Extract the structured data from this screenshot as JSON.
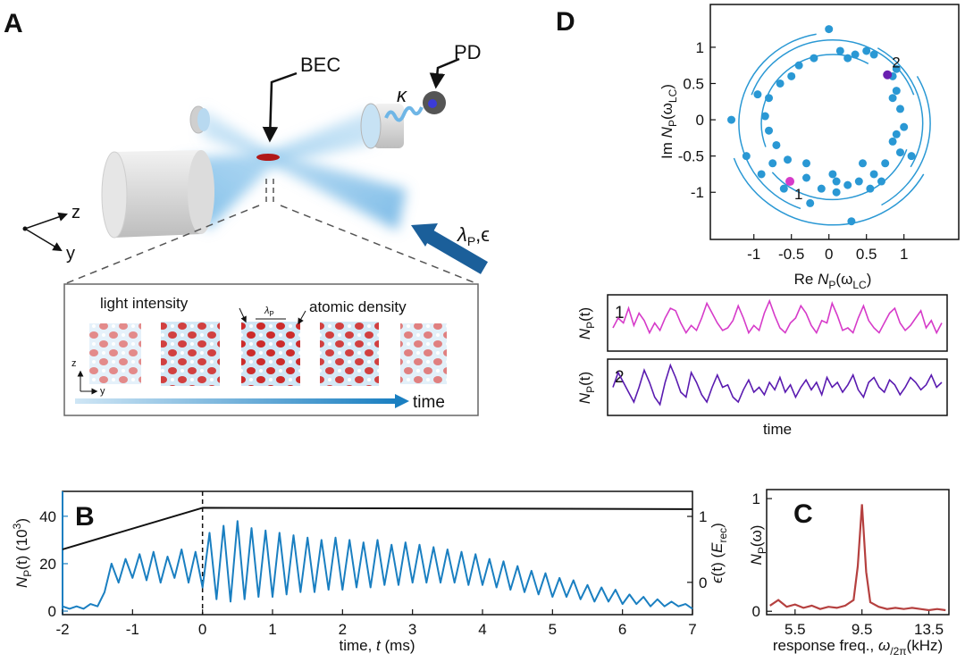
{
  "panel_a": {
    "letter": "A",
    "bec": "BEC",
    "pd": "PD",
    "kappa": "κ",
    "axis_z": "z",
    "axis_y": "y",
    "pump": {
      "symbol": "λ",
      "sub": "P",
      "post": ",ϵ"
    },
    "inset": {
      "light_intensity": "light intensity",
      "lattice": {
        "symbol": "λ",
        "sub": "P"
      },
      "atomic_density": "atomic density",
      "axis_z": "z",
      "axis_y": "y",
      "time": "time"
    }
  },
  "chart_data": [
    {
      "panel": "B",
      "type": "line",
      "xlabel": {
        "pre": "time, ",
        "symbol": "t",
        "post": " (ms)"
      },
      "ylabel": {
        "symbol": "N",
        "sub": "P",
        "mid": "(t) (10",
        "sup": "3",
        "post": ")"
      },
      "y2label": {
        "symbol": "ϵ",
        "mid": "(t) (",
        "symbol2": "E",
        "sub": "rec",
        "post": ")"
      },
      "xlim": [
        -2,
        7
      ],
      "xticks": [
        -2,
        -1,
        0,
        1,
        2,
        3,
        4,
        5,
        6,
        7
      ],
      "ylim": [
        -1.5,
        50.5
      ],
      "yticks": [
        0,
        20,
        40
      ],
      "y2lim": [
        -0.49,
        1.38
      ],
      "y2ticks": [
        0,
        1
      ],
      "marker_line_x": 0,
      "series": [
        {
          "color": "#1a7fc1",
          "x": [
            -2.0,
            -1.9,
            -1.8,
            -1.7,
            -1.6,
            -1.5,
            -1.4,
            -1.3,
            -1.2,
            -1.1,
            -1.0,
            -0.9,
            -0.8,
            -0.7,
            -0.6,
            -0.5,
            -0.4,
            -0.3,
            -0.2,
            -0.1,
            0.0,
            0.1,
            0.2,
            0.3,
            0.4,
            0.5,
            0.6,
            0.7,
            0.8,
            0.9,
            1.0,
            1.1,
            1.2,
            1.3,
            1.4,
            1.5,
            1.6,
            1.7,
            1.8,
            1.9,
            2.0,
            2.1,
            2.2,
            2.3,
            2.4,
            2.5,
            2.6,
            2.7,
            2.8,
            2.9,
            3.0,
            3.1,
            3.2,
            3.3,
            3.4,
            3.5,
            3.6,
            3.7,
            3.8,
            3.9,
            4.0,
            4.1,
            4.2,
            4.3,
            4.4,
            4.5,
            4.6,
            4.7,
            4.8,
            4.9,
            5.0,
            5.1,
            5.2,
            5.3,
            5.4,
            5.5,
            5.6,
            5.7,
            5.8,
            5.9,
            6.0,
            6.1,
            6.2,
            6.3,
            6.4,
            6.5,
            6.6,
            6.7,
            6.8,
            6.9,
            7.0
          ],
          "values": [
            2,
            1,
            2,
            1,
            3,
            2,
            8,
            20,
            12,
            22,
            14,
            24,
            13,
            25,
            12,
            23,
            14,
            26,
            12,
            25,
            10,
            33,
            5,
            36,
            4,
            38,
            5,
            35,
            6,
            34,
            6,
            33,
            7,
            32,
            8,
            31,
            8,
            30,
            9,
            31,
            9,
            30,
            10,
            29,
            10,
            30,
            11,
            28,
            11,
            29,
            12,
            28,
            12,
            27,
            12,
            26,
            12,
            25,
            11,
            24,
            11,
            22,
            10,
            21,
            9,
            19,
            8,
            17,
            7,
            16,
            6,
            14,
            6,
            13,
            5,
            11,
            4,
            10,
            4,
            9,
            3,
            7,
            3,
            6,
            2,
            5,
            2,
            4,
            2,
            3,
            1
          ]
        },
        {
          "color": "#111111",
          "axis": "y2",
          "x": [
            -2,
            0,
            7
          ],
          "values": [
            0.5,
            1.13,
            1.11
          ]
        }
      ]
    },
    {
      "panel": "C",
      "type": "line",
      "xlabel": {
        "pre": "response freq., ",
        "symbol": "ω",
        "sub": "/2π",
        "post": "(kHz)"
      },
      "ylabel": {
        "symbol": "N",
        "sub": "P",
        "post": "(ω)"
      },
      "xlim": [
        3.8,
        14.7
      ],
      "xticks": [
        5.5,
        9.5,
        13.5
      ],
      "ylim": [
        -0.03,
        1.08
      ],
      "yticks": [
        0,
        1
      ],
      "color": "#b5403f",
      "x": [
        4.0,
        4.5,
        5.0,
        5.5,
        6.0,
        6.5,
        7.0,
        7.5,
        8.0,
        8.5,
        9.0,
        9.25,
        9.5,
        9.75,
        10.0,
        10.5,
        11.0,
        11.5,
        12.0,
        12.5,
        13.0,
        13.5,
        14.0,
        14.5
      ],
      "values": [
        0.05,
        0.1,
        0.04,
        0.06,
        0.03,
        0.05,
        0.02,
        0.04,
        0.03,
        0.05,
        0.1,
        0.4,
        0.95,
        0.35,
        0.08,
        0.04,
        0.02,
        0.03,
        0.02,
        0.03,
        0.02,
        0.01,
        0.02,
        0.01
      ]
    },
    {
      "panel": "D",
      "type": "scatter",
      "xlabel": {
        "pre": "Re ",
        "symbol": "N",
        "sub": "P",
        "mid": "(ω",
        "sub2": "LC",
        "post": ")"
      },
      "ylabel": {
        "pre": "Im ",
        "symbol": "N",
        "sub": "P",
        "mid": "(ω",
        "sub2": "LC",
        "post": ")"
      },
      "xlim": [
        -1.58,
        1.73
      ],
      "xticks": [
        -1,
        -0.5,
        0,
        0.5,
        1
      ],
      "ylim": [
        -1.65,
        1.59
      ],
      "yticks": [
        -1,
        -0.5,
        0,
        0.5,
        1
      ],
      "color": "#2a98d4",
      "x": [
        0.0,
        0.35,
        -0.2,
        0.6,
        -0.4,
        0.15,
        0.85,
        0.9,
        0.95,
        0.85,
        1.0,
        0.9,
        0.95,
        0.75,
        0.6,
        0.4,
        0.25,
        0.1,
        -0.1,
        -0.3,
        -0.55,
        -0.7,
        -0.8,
        -0.85,
        -0.8,
        -0.65,
        -1.3,
        -1.1,
        -0.9,
        0.3,
        -0.25,
        0.55,
        0.7,
        -0.5,
        0.5,
        0.25,
        -0.95,
        1.1,
        0.1,
        -0.6,
        0.05,
        -0.75,
        0.45,
        0.85,
        -0.3,
        0.9
      ],
      "values": [
        1.25,
        0.9,
        0.85,
        0.9,
        0.75,
        0.95,
        0.6,
        0.4,
        0.15,
        0.3,
        -0.1,
        -0.2,
        -0.45,
        -0.6,
        -0.75,
        -0.85,
        -0.9,
        -0.85,
        -0.95,
        -0.8,
        -0.55,
        -0.35,
        -0.15,
        0.05,
        0.3,
        0.5,
        0.0,
        -0.5,
        -0.75,
        -1.4,
        -1.15,
        -0.95,
        -0.85,
        0.6,
        0.95,
        0.85,
        0.35,
        -0.5,
        -1.0,
        -0.95,
        -0.75,
        -0.6,
        -0.6,
        -0.3,
        -0.6,
        0.7
      ],
      "arc_center": [
        0.05,
        -0.05
      ],
      "arcs": [
        {
          "r": 1.25,
          "from": 100,
          "to": 250
        },
        {
          "r": 1.4,
          "from": 200,
          "to": 330
        },
        {
          "r": 1.15,
          "from": 20,
          "to": 160
        },
        {
          "r": 1.3,
          "from": -60,
          "to": 30
        },
        {
          "r": 0.95,
          "from": 60,
          "to": 200
        },
        {
          "r": 1.05,
          "from": 220,
          "to": 340
        },
        {
          "r": 1.2,
          "from": -30,
          "to": 60
        }
      ],
      "highlights": [
        {
          "label": "1",
          "x": -0.52,
          "y": -0.85,
          "color": "#d63bc9"
        },
        {
          "label": "2",
          "x": 0.78,
          "y": 0.62,
          "color": "#6a1fb0"
        }
      ]
    },
    {
      "type": "line",
      "label": "1",
      "color": "#d63bc9",
      "ylim": [
        0,
        1
      ],
      "ylabel": {
        "symbol": "N",
        "sub": "P",
        "post": "(t)"
      },
      "values": [
        0.4,
        0.6,
        0.5,
        0.8,
        0.45,
        0.7,
        0.55,
        0.3,
        0.5,
        0.35,
        0.6,
        0.8,
        0.75,
        0.5,
        0.3,
        0.45,
        0.35,
        0.6,
        0.9,
        0.7,
        0.5,
        0.35,
        0.4,
        0.55,
        0.85,
        0.6,
        0.3,
        0.45,
        0.35,
        0.7,
        0.95,
        0.65,
        0.4,
        0.3,
        0.5,
        0.6,
        0.85,
        0.7,
        0.45,
        0.3,
        0.55,
        0.5,
        0.9,
        0.65,
        0.35,
        0.4,
        0.3,
        0.6,
        0.85,
        0.55,
        0.4,
        0.3,
        0.5,
        0.7,
        0.8,
        0.5,
        0.35,
        0.45,
        0.6,
        0.75,
        0.4,
        0.55,
        0.3,
        0.5
      ]
    },
    {
      "type": "line",
      "label": "2",
      "color": "#5a1bb0",
      "ylim": [
        0,
        1
      ],
      "ylabel": {
        "symbol": "N",
        "sub": "P",
        "post": "(t)"
      },
      "xlabel": {
        "pre": "time"
      },
      "values": [
        0.5,
        0.8,
        0.6,
        0.4,
        0.2,
        0.5,
        0.85,
        0.6,
        0.3,
        0.15,
        0.6,
        0.95,
        0.7,
        0.4,
        0.3,
        0.8,
        0.6,
        0.35,
        0.2,
        0.5,
        0.75,
        0.5,
        0.55,
        0.3,
        0.2,
        0.45,
        0.65,
        0.4,
        0.5,
        0.35,
        0.6,
        0.45,
        0.7,
        0.4,
        0.55,
        0.3,
        0.5,
        0.65,
        0.45,
        0.6,
        0.35,
        0.7,
        0.5,
        0.6,
        0.4,
        0.55,
        0.75,
        0.45,
        0.3,
        0.6,
        0.7,
        0.5,
        0.4,
        0.65,
        0.55,
        0.35,
        0.5,
        0.7,
        0.6,
        0.45,
        0.55,
        0.75,
        0.5,
        0.6
      ]
    }
  ]
}
